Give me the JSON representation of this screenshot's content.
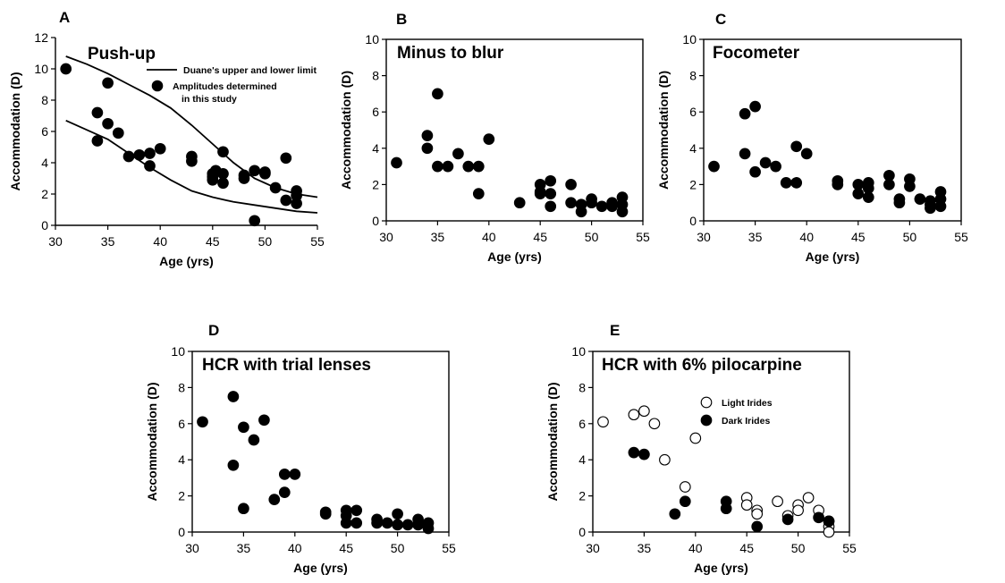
{
  "chart_data": [
    {
      "id": "A",
      "type": "scatter",
      "panel_letter": "A",
      "title": "Push-up",
      "xlabel": "Age (yrs)",
      "ylabel": "Accommodation (D)",
      "xlim": [
        30,
        55
      ],
      "ylim": [
        0,
        12
      ],
      "xticks": [
        30,
        35,
        40,
        45,
        50,
        55
      ],
      "yticks": [
        0,
        2,
        4,
        6,
        8,
        10,
        12
      ],
      "box": false,
      "series": [
        {
          "name": "Duane's upper and lower limit",
          "kind": "line",
          "lines": [
            {
              "x": [
                31,
                33,
                35,
                37,
                39,
                41,
                43,
                45,
                47,
                49,
                51,
                53,
                55
              ],
              "y": [
                10.8,
                10.3,
                9.7,
                9.0,
                8.3,
                7.5,
                6.4,
                5.2,
                4.0,
                3.0,
                2.4,
                2.0,
                1.8
              ]
            },
            {
              "x": [
                31,
                33,
                35,
                37,
                39,
                41,
                43,
                45,
                47,
                49,
                51,
                53,
                55
              ],
              "y": [
                6.7,
                6.1,
                5.5,
                4.6,
                3.7,
                2.9,
                2.2,
                1.8,
                1.5,
                1.3,
                1.1,
                0.9,
                0.8
              ]
            }
          ]
        },
        {
          "name": "Amplitudes determined",
          "name_line2": "in this study",
          "kind": "points",
          "fill": "#000000",
          "points": [
            [
              31,
              10.0
            ],
            [
              34,
              7.2
            ],
            [
              34,
              5.4
            ],
            [
              35,
              9.1
            ],
            [
              35,
              6.5
            ],
            [
              36,
              5.9
            ],
            [
              37,
              4.4
            ],
            [
              38,
              4.5
            ],
            [
              39,
              4.6
            ],
            [
              39,
              3.8
            ],
            [
              40,
              4.9
            ],
            [
              43,
              4.4
            ],
            [
              43,
              4.1
            ],
            [
              45,
              3.1
            ],
            [
              45,
              3.3
            ],
            [
              45,
              2.9
            ],
            [
              45.3,
              3.5
            ],
            [
              46,
              4.7
            ],
            [
              46,
              3.3
            ],
            [
              46,
              2.7
            ],
            [
              48,
              3.0
            ],
            [
              48,
              3.2
            ],
            [
              49,
              3.5
            ],
            [
              49,
              0.3
            ],
            [
              50,
              3.4
            ],
            [
              50,
              3.3
            ],
            [
              51,
              2.4
            ],
            [
              52,
              4.3
            ],
            [
              52,
              1.6
            ],
            [
              53,
              2.2
            ],
            [
              53,
              1.9
            ],
            [
              53,
              1.4
            ]
          ]
        }
      ],
      "legend": {
        "line_label": "Duane's upper and lower limit",
        "point_label_line1": "Amplitudes determined",
        "point_label_line2": "in this study"
      }
    },
    {
      "id": "B",
      "type": "scatter",
      "panel_letter": "B",
      "title": "Minus to blur",
      "xlabel": "Age (yrs)",
      "ylabel": "Accommodation (D)",
      "xlim": [
        30,
        55
      ],
      "ylim": [
        0,
        10
      ],
      "xticks": [
        30,
        35,
        40,
        45,
        50,
        55
      ],
      "yticks": [
        0,
        2,
        4,
        6,
        8,
        10
      ],
      "box": true,
      "series": [
        {
          "kind": "points",
          "fill": "#000000",
          "points": [
            [
              31,
              3.2
            ],
            [
              34,
              4.7
            ],
            [
              34,
              4.0
            ],
            [
              35,
              7.0
            ],
            [
              35,
              3.0
            ],
            [
              36,
              3.0
            ],
            [
              37,
              3.7
            ],
            [
              38,
              3.0
            ],
            [
              39,
              3.0
            ],
            [
              39,
              1.5
            ],
            [
              40,
              4.5
            ],
            [
              43,
              1.0
            ],
            [
              45,
              2.0
            ],
            [
              45,
              1.6
            ],
            [
              45,
              1.5
            ],
            [
              46,
              2.2
            ],
            [
              46,
              1.5
            ],
            [
              46,
              0.8
            ],
            [
              48,
              2.0
            ],
            [
              48,
              1.0
            ],
            [
              49,
              0.9
            ],
            [
              49,
              0.5
            ],
            [
              50,
              1.2
            ],
            [
              50,
              1.0
            ],
            [
              51,
              0.8
            ],
            [
              52,
              1.0
            ],
            [
              52,
              0.8
            ],
            [
              53,
              1.3
            ],
            [
              53,
              0.9
            ],
            [
              53,
              0.5
            ]
          ]
        }
      ]
    },
    {
      "id": "C",
      "type": "scatter",
      "panel_letter": "C",
      "title": "Focometer",
      "xlabel": "Age (yrs)",
      "ylabel": "Accommodation (D)",
      "xlim": [
        30,
        55
      ],
      "ylim": [
        0,
        10
      ],
      "xticks": [
        30,
        35,
        40,
        45,
        50,
        55
      ],
      "yticks": [
        0,
        2,
        4,
        6,
        8,
        10
      ],
      "box": true,
      "series": [
        {
          "kind": "points",
          "fill": "#000000",
          "points": [
            [
              31,
              3.0
            ],
            [
              34,
              5.9
            ],
            [
              34,
              3.7
            ],
            [
              35,
              6.3
            ],
            [
              35,
              2.7
            ],
            [
              36,
              3.2
            ],
            [
              37,
              3.0
            ],
            [
              38,
              2.1
            ],
            [
              39,
              4.1
            ],
            [
              39,
              2.1
            ],
            [
              40,
              3.7
            ],
            [
              43,
              2.2
            ],
            [
              43,
              2.0
            ],
            [
              45,
              2.0
            ],
            [
              45,
              1.5
            ],
            [
              46,
              2.1
            ],
            [
              46,
              1.8
            ],
            [
              46,
              1.3
            ],
            [
              48,
              2.5
            ],
            [
              48,
              2.0
            ],
            [
              49,
              1.2
            ],
            [
              49,
              1.0
            ],
            [
              50,
              2.3
            ],
            [
              50,
              1.9
            ],
            [
              51,
              1.2
            ],
            [
              52,
              1.1
            ],
            [
              52,
              0.9
            ],
            [
              52,
              0.7
            ],
            [
              53,
              1.6
            ],
            [
              53,
              1.2
            ],
            [
              53,
              0.8
            ]
          ]
        }
      ]
    },
    {
      "id": "D",
      "type": "scatter",
      "panel_letter": "D",
      "title": "HCR with trial lenses",
      "xlabel": "Age (yrs)",
      "ylabel": "Accommodation (D)",
      "xlim": [
        30,
        55
      ],
      "ylim": [
        0,
        10
      ],
      "xticks": [
        30,
        35,
        40,
        45,
        50,
        55
      ],
      "yticks": [
        0,
        2,
        4,
        6,
        8,
        10
      ],
      "box": true,
      "series": [
        {
          "kind": "points",
          "fill": "#000000",
          "points": [
            [
              31,
              6.1
            ],
            [
              34,
              7.5
            ],
            [
              34,
              3.7
            ],
            [
              35,
              5.8
            ],
            [
              35,
              1.3
            ],
            [
              36,
              5.1
            ],
            [
              37,
              6.2
            ],
            [
              38,
              1.8
            ],
            [
              39,
              3.2
            ],
            [
              39,
              2.2
            ],
            [
              40,
              3.2
            ],
            [
              43,
              1.1
            ],
            [
              43,
              1.0
            ],
            [
              45,
              1.2
            ],
            [
              45,
              0.9
            ],
            [
              45,
              0.5
            ],
            [
              46,
              1.2
            ],
            [
              46,
              0.5
            ],
            [
              48,
              0.7
            ],
            [
              48,
              0.5
            ],
            [
              49,
              0.5
            ],
            [
              50,
              1.0
            ],
            [
              50,
              0.4
            ],
            [
              51,
              0.4
            ],
            [
              52,
              0.7
            ],
            [
              52,
              0.4
            ],
            [
              53,
              0.5
            ],
            [
              53,
              0.2
            ]
          ]
        }
      ]
    },
    {
      "id": "E",
      "type": "scatter",
      "panel_letter": "E",
      "title": "HCR with 6% pilocarpine",
      "xlabel": "Age (yrs)",
      "ylabel": "Accommodation (D)",
      "xlim": [
        30,
        55
      ],
      "ylim": [
        0,
        10
      ],
      "xticks": [
        30,
        35,
        40,
        45,
        50,
        55
      ],
      "yticks": [
        0,
        2,
        4,
        6,
        8,
        10
      ],
      "box": true,
      "series": [
        {
          "name": "Light Irides",
          "kind": "points",
          "fill": "#ffffff",
          "points": [
            [
              31,
              6.1
            ],
            [
              34,
              6.5
            ],
            [
              35,
              6.7
            ],
            [
              36,
              6.0
            ],
            [
              37,
              4.0
            ],
            [
              39,
              2.5
            ],
            [
              40,
              5.2
            ],
            [
              45,
              1.9
            ],
            [
              45,
              1.5
            ],
            [
              46,
              1.2
            ],
            [
              46,
              1.0
            ],
            [
              48,
              1.7
            ],
            [
              49,
              0.9
            ],
            [
              50,
              1.5
            ],
            [
              50,
              1.2
            ],
            [
              51,
              1.9
            ],
            [
              52,
              1.2
            ],
            [
              53,
              0.6
            ],
            [
              53,
              0.3
            ],
            [
              53,
              0.0
            ]
          ]
        },
        {
          "name": "Dark Irides",
          "kind": "points",
          "fill": "#000000",
          "points": [
            [
              34,
              4.4
            ],
            [
              35,
              4.3
            ],
            [
              38,
              1.0
            ],
            [
              39,
              1.7
            ],
            [
              43,
              1.7
            ],
            [
              43,
              1.3
            ],
            [
              46,
              0.3
            ],
            [
              49,
              0.7
            ],
            [
              52,
              0.8
            ],
            [
              53,
              0.6
            ]
          ]
        }
      ],
      "legend": {
        "items": [
          "Light Irides",
          "Dark Irides"
        ]
      }
    }
  ]
}
